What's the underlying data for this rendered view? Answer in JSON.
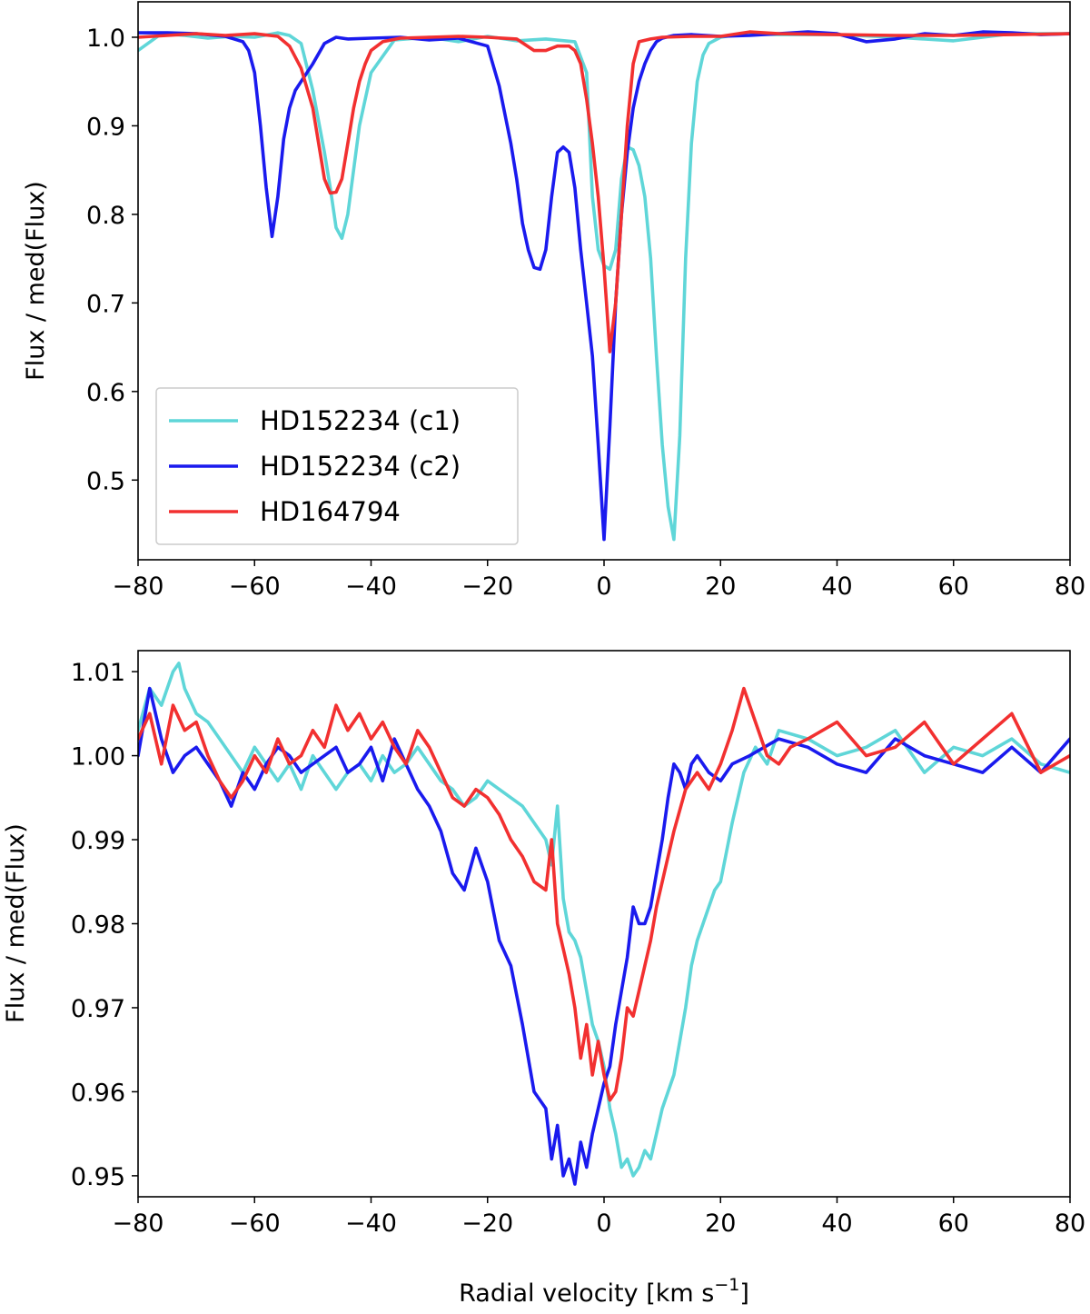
{
  "figure": {
    "xlabel_main": "Radial velocity [km s",
    "xlabel_sup": "−1",
    "xlabel_end": "]"
  },
  "chart_data": [
    {
      "type": "line",
      "title": "",
      "xlabel": "",
      "ylabel": "Flux / med(Flux)",
      "xlim": [
        -80,
        80
      ],
      "ylim": [
        0.41,
        1.04
      ],
      "xticks": [
        -80,
        -60,
        -40,
        -20,
        0,
        20,
        40,
        60,
        80
      ],
      "xtick_labels": [
        "−80",
        "−60",
        "−40",
        "−20",
        "0",
        "20",
        "40",
        "60",
        "80"
      ],
      "yticks": [
        0.5,
        0.6,
        0.7,
        0.8,
        0.9,
        1.0
      ],
      "ytick_labels": [
        "0.5",
        "0.6",
        "0.7",
        "0.8",
        "0.9",
        "1.0"
      ],
      "legend": {
        "position": "lower-left",
        "entries": [
          "HD152234 (c1)",
          "HD152234 (c2)",
          "HD164794"
        ]
      },
      "series": [
        {
          "name": "HD152234 (c1)",
          "color": "#5fd6d8",
          "x": [
            -80,
            -76,
            -72,
            -68,
            -64,
            -60,
            -56,
            -54,
            -52,
            -50,
            -48,
            -47,
            -46,
            -45,
            -44,
            -42,
            -40,
            -36,
            -30,
            -25,
            -20,
            -15,
            -10,
            -5,
            -3,
            -2,
            -1,
            0,
            1,
            2,
            3,
            4,
            5,
            6,
            7,
            8,
            9,
            10,
            11,
            12,
            13,
            14,
            15,
            16,
            17,
            18,
            20,
            24,
            30,
            40,
            50,
            60,
            70,
            80
          ],
          "y": [
            0.985,
            1.004,
            1.002,
            0.999,
            1.001,
            1.0,
            1.005,
            1.002,
            0.993,
            0.94,
            0.87,
            0.83,
            0.785,
            0.773,
            0.8,
            0.9,
            0.96,
            0.997,
            1.0,
            0.995,
            1.001,
            0.996,
            0.998,
            0.995,
            0.96,
            0.82,
            0.76,
            0.742,
            0.738,
            0.76,
            0.84,
            0.876,
            0.873,
            0.855,
            0.82,
            0.75,
            0.64,
            0.54,
            0.47,
            0.433,
            0.55,
            0.75,
            0.88,
            0.95,
            0.98,
            0.993,
            1.0,
            1.004,
            1.003,
            1.003,
            1.0,
            0.996,
            1.004,
            1.004
          ]
        },
        {
          "name": "HD152234 (c2)",
          "color": "#1a1aee",
          "x": [
            -80,
            -75,
            -70,
            -65,
            -62,
            -61,
            -60,
            -59,
            -58,
            -57,
            -56,
            -55,
            -54,
            -53,
            -52,
            -50,
            -48,
            -46,
            -44,
            -40,
            -35,
            -30,
            -25,
            -20,
            -18,
            -16,
            -15,
            -14,
            -13,
            -12,
            -11,
            -10,
            -9,
            -8,
            -7,
            -6,
            -5,
            -4,
            -3,
            -2,
            -1,
            0,
            1,
            2,
            3,
            4,
            5,
            6,
            7,
            8,
            9,
            10,
            12,
            15,
            20,
            25,
            30,
            35,
            40,
            45,
            50,
            55,
            60,
            65,
            70,
            75,
            80
          ],
          "y": [
            1.005,
            1.005,
            1.004,
            1.001,
            0.995,
            0.985,
            0.96,
            0.9,
            0.83,
            0.775,
            0.82,
            0.885,
            0.92,
            0.94,
            0.95,
            0.97,
            0.993,
            1.0,
            0.998,
            0.999,
            1.0,
            0.997,
            0.999,
            0.99,
            0.945,
            0.88,
            0.84,
            0.79,
            0.76,
            0.74,
            0.738,
            0.76,
            0.82,
            0.87,
            0.876,
            0.87,
            0.83,
            0.76,
            0.7,
            0.64,
            0.54,
            0.433,
            0.56,
            0.7,
            0.8,
            0.87,
            0.92,
            0.95,
            0.97,
            0.985,
            0.995,
            0.999,
            1.002,
            1.003,
            1.001,
            1.002,
            1.004,
            1.006,
            1.004,
            0.995,
            0.998,
            1.004,
            1.002,
            1.006,
            1.005,
            1.003,
            1.004
          ]
        },
        {
          "name": "HD164794",
          "color": "#f23030",
          "x": [
            -80,
            -75,
            -70,
            -65,
            -60,
            -56,
            -54,
            -52,
            -50,
            -49,
            -48,
            -47,
            -46,
            -45,
            -44,
            -43,
            -42,
            -41,
            -40,
            -38,
            -35,
            -30,
            -25,
            -20,
            -15,
            -12,
            -10,
            -8,
            -6,
            -5,
            -4,
            -3,
            -2,
            -1,
            0,
            1,
            2,
            3,
            4,
            5,
            6,
            8,
            10,
            15,
            20,
            25,
            30,
            40,
            50,
            60,
            70,
            80
          ],
          "y": [
            1.0,
            1.002,
            1.004,
            1.002,
            1.004,
            1.001,
            0.99,
            0.965,
            0.92,
            0.88,
            0.84,
            0.824,
            0.825,
            0.84,
            0.88,
            0.92,
            0.95,
            0.97,
            0.985,
            0.995,
            0.999,
            1.0,
            1.001,
            1.0,
            0.998,
            0.985,
            0.985,
            0.99,
            0.99,
            0.985,
            0.97,
            0.93,
            0.88,
            0.82,
            0.74,
            0.645,
            0.7,
            0.8,
            0.9,
            0.97,
            0.995,
            0.998,
            1.0,
            1.001,
            1.001,
            1.006,
            1.004,
            1.003,
            1.002,
            1.002,
            1.003,
            1.004
          ]
        }
      ]
    },
    {
      "type": "line",
      "title": "",
      "xlabel": "Radial velocity [km s−1]",
      "ylabel": "Flux / med(Flux)",
      "xlim": [
        -80,
        80
      ],
      "ylim": [
        0.9475,
        1.0125
      ],
      "xticks": [
        -80,
        -60,
        -40,
        -20,
        0,
        20,
        40,
        60,
        80
      ],
      "xtick_labels": [
        "−80",
        "−60",
        "−40",
        "−20",
        "0",
        "20",
        "40",
        "60",
        "80"
      ],
      "yticks": [
        0.95,
        0.96,
        0.97,
        0.98,
        0.99,
        1.0,
        1.01
      ],
      "ytick_labels": [
        "0.95",
        "0.96",
        "0.97",
        "0.98",
        "0.99",
        "1.00",
        "1.01"
      ],
      "series": [
        {
          "name": "HD152234 (c1)",
          "color": "#5fd6d8",
          "x": [
            -80,
            -78,
            -76,
            -74,
            -73,
            -72,
            -70,
            -68,
            -66,
            -64,
            -62,
            -60,
            -58,
            -56,
            -54,
            -52,
            -50,
            -48,
            -46,
            -44,
            -42,
            -40,
            -38,
            -36,
            -34,
            -32,
            -30,
            -28,
            -26,
            -24,
            -22,
            -20,
            -18,
            -16,
            -14,
            -12,
            -10,
            -9,
            -8,
            -7,
            -6,
            -5,
            -4,
            -3,
            -2,
            -1,
            0,
            1,
            2,
            3,
            4,
            5,
            6,
            7,
            8,
            9,
            10,
            11,
            12,
            13,
            14,
            15,
            16,
            17,
            18,
            19,
            20,
            22,
            24,
            26,
            28,
            30,
            35,
            40,
            45,
            50,
            55,
            60,
            65,
            70,
            75,
            80
          ],
          "y": [
            1.003,
            1.008,
            1.006,
            1.01,
            1.011,
            1.008,
            1.005,
            1.004,
            1.002,
            1.0,
            0.998,
            1.001,
            0.999,
            0.997,
            0.999,
            0.996,
            1.0,
            0.998,
            0.996,
            0.998,
            0.999,
            0.997,
            1.0,
            0.998,
            0.999,
            1.001,
            0.999,
            0.997,
            0.996,
            0.994,
            0.995,
            0.997,
            0.996,
            0.995,
            0.994,
            0.992,
            0.99,
            0.987,
            0.994,
            0.983,
            0.979,
            0.978,
            0.976,
            0.972,
            0.968,
            0.966,
            0.963,
            0.958,
            0.955,
            0.951,
            0.952,
            0.95,
            0.951,
            0.953,
            0.952,
            0.955,
            0.958,
            0.96,
            0.962,
            0.966,
            0.97,
            0.975,
            0.978,
            0.98,
            0.982,
            0.984,
            0.985,
            0.992,
            0.998,
            1.001,
            0.999,
            1.003,
            1.002,
            1.0,
            1.001,
            1.003,
            0.998,
            1.001,
            1.0,
            1.002,
            0.999,
            0.998
          ]
        },
        {
          "name": "HD152234 (c2)",
          "color": "#1a1aee",
          "x": [
            -80,
            -78,
            -76,
            -74,
            -72,
            -70,
            -68,
            -66,
            -64,
            -62,
            -60,
            -58,
            -56,
            -54,
            -52,
            -50,
            -48,
            -46,
            -44,
            -42,
            -40,
            -38,
            -36,
            -34,
            -32,
            -30,
            -28,
            -26,
            -24,
            -22,
            -20,
            -18,
            -16,
            -14,
            -12,
            -10,
            -9,
            -8,
            -7,
            -6,
            -5,
            -4,
            -3,
            -2,
            -1,
            0,
            1,
            2,
            3,
            4,
            5,
            6,
            7,
            8,
            9,
            10,
            11,
            12,
            13,
            14,
            15,
            16,
            18,
            20,
            22,
            25,
            30,
            35,
            40,
            45,
            50,
            55,
            60,
            65,
            70,
            75,
            80
          ],
          "y": [
            1.0,
            1.008,
            1.002,
            0.998,
            1.0,
            1.001,
            0.999,
            0.997,
            0.994,
            0.998,
            0.996,
            0.999,
            1.001,
            1.0,
            0.998,
            0.999,
            1.0,
            1.001,
            0.998,
            0.999,
            1.001,
            0.997,
            1.002,
            0.999,
            0.996,
            0.994,
            0.991,
            0.986,
            0.984,
            0.989,
            0.985,
            0.978,
            0.975,
            0.968,
            0.96,
            0.958,
            0.952,
            0.956,
            0.95,
            0.952,
            0.949,
            0.954,
            0.951,
            0.955,
            0.958,
            0.961,
            0.963,
            0.968,
            0.972,
            0.976,
            0.982,
            0.98,
            0.98,
            0.982,
            0.986,
            0.99,
            0.995,
            0.999,
            0.998,
            0.996,
            0.999,
            1.0,
            0.998,
            0.997,
            0.999,
            1.0,
            1.002,
            1.001,
            0.999,
            0.998,
            1.002,
            1.0,
            0.999,
            0.998,
            1.001,
            0.998,
            1.002
          ]
        },
        {
          "name": "HD164794",
          "color": "#f23030",
          "x": [
            -80,
            -78,
            -76,
            -74,
            -72,
            -70,
            -68,
            -66,
            -64,
            -62,
            -60,
            -58,
            -56,
            -54,
            -52,
            -50,
            -48,
            -46,
            -44,
            -42,
            -40,
            -38,
            -36,
            -34,
            -32,
            -30,
            -28,
            -26,
            -24,
            -22,
            -20,
            -18,
            -16,
            -14,
            -12,
            -10,
            -9,
            -8,
            -7,
            -6,
            -5,
            -4,
            -3,
            -2,
            -1,
            0,
            1,
            2,
            3,
            4,
            5,
            6,
            7,
            8,
            9,
            10,
            12,
            14,
            16,
            18,
            20,
            22,
            24,
            26,
            28,
            30,
            32,
            35,
            40,
            45,
            50,
            55,
            60,
            65,
            70,
            75,
            80
          ],
          "y": [
            1.002,
            1.005,
            0.999,
            1.006,
            1.003,
            1.004,
            1.0,
            0.997,
            0.995,
            0.997,
            1.0,
            0.998,
            1.002,
            0.999,
            1.0,
            1.003,
            1.001,
            1.006,
            1.003,
            1.005,
            1.002,
            1.004,
            1.001,
            0.999,
            1.003,
            1.001,
            0.998,
            0.995,
            0.994,
            0.996,
            0.995,
            0.993,
            0.99,
            0.988,
            0.985,
            0.984,
            0.99,
            0.98,
            0.977,
            0.974,
            0.97,
            0.964,
            0.968,
            0.962,
            0.966,
            0.962,
            0.959,
            0.96,
            0.964,
            0.97,
            0.969,
            0.972,
            0.975,
            0.978,
            0.982,
            0.985,
            0.991,
            0.996,
            0.998,
            0.996,
            0.999,
            1.003,
            1.008,
            1.004,
            1.0,
            0.999,
            1.001,
            1.002,
            1.004,
            1.0,
            1.001,
            1.004,
            0.999,
            1.002,
            1.005,
            0.998,
            1.0
          ]
        }
      ]
    }
  ]
}
